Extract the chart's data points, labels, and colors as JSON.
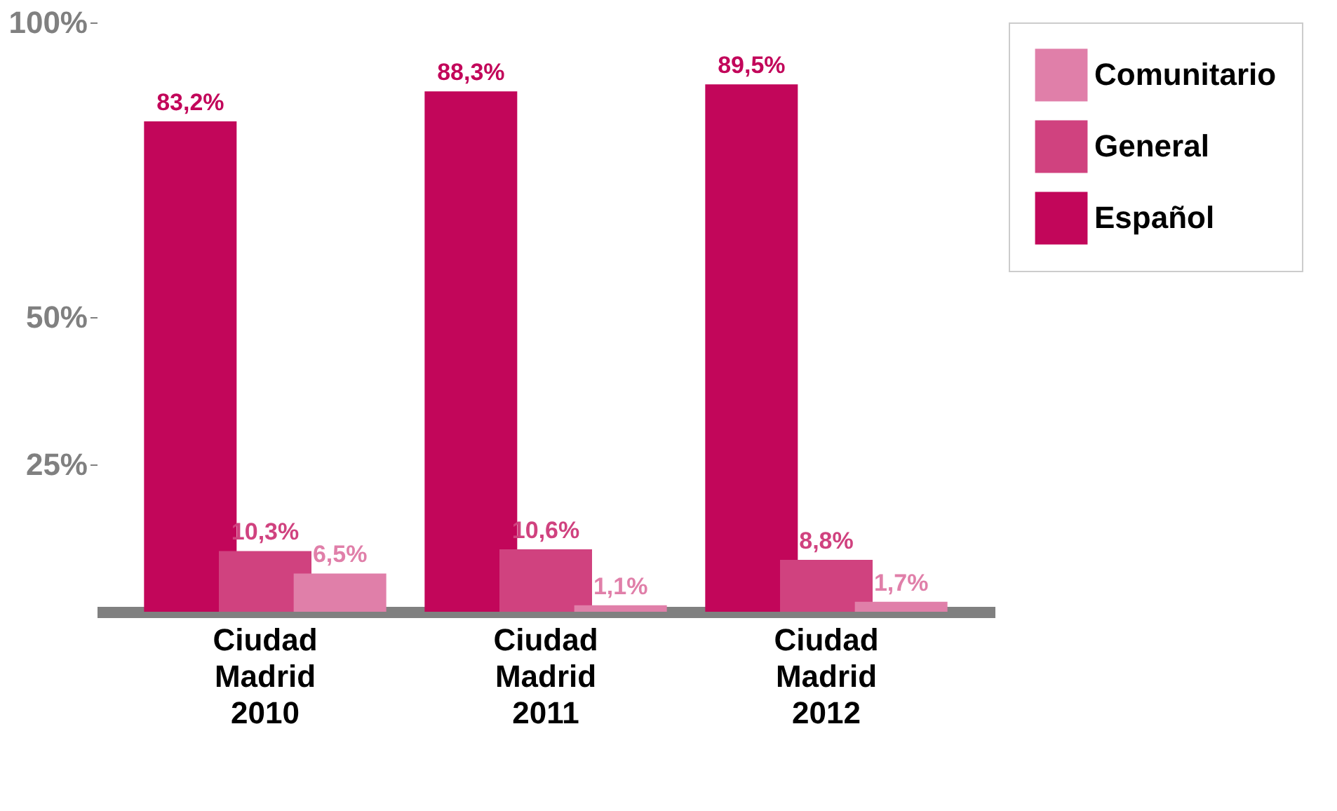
{
  "chart_data": {
    "type": "bar",
    "categories": [
      "Ciudad Madrid 2010",
      "Ciudad Madrid 2011",
      "Ciudad Madrid 2012"
    ],
    "series": [
      {
        "name": "Español",
        "color": "#c2065a",
        "values": [
          83.2,
          88.3,
          89.5
        ],
        "value_labels": [
          "83,2%",
          "88,3%",
          "89,5%"
        ]
      },
      {
        "name": "General",
        "color": "#d0427f",
        "values": [
          10.3,
          10.6,
          8.8
        ],
        "value_labels": [
          "10,3%",
          "10,6%",
          "8,8%"
        ]
      },
      {
        "name": "Comunitario",
        "color": "#e07fa9",
        "values": [
          6.5,
          1.1,
          1.7
        ],
        "value_labels": [
          "6,5%",
          "1,1%",
          "1,7%"
        ]
      }
    ],
    "ylim": [
      0,
      100
    ],
    "yticks": [
      {
        "value": 25,
        "label": "25%"
      },
      {
        "value": 50,
        "label": "50%"
      },
      {
        "value": 100,
        "label": "100%"
      }
    ],
    "grid": false,
    "legend": "top right"
  }
}
